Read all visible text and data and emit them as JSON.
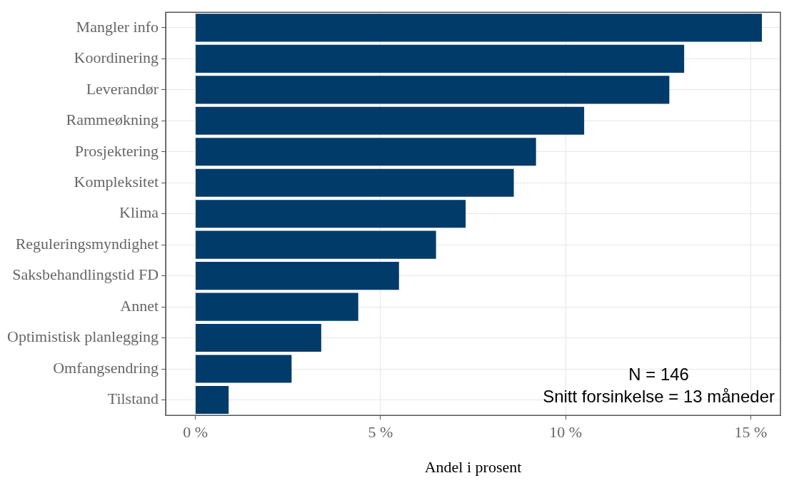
{
  "chart_data": {
    "type": "bar",
    "orientation": "horizontal",
    "xlabel": "Andel i prosent",
    "categories": [
      "Mangler info",
      "Koordinering",
      "Leverandør",
      "Rammeøkning",
      "Prosjektering",
      "Kompleksitet",
      "Klima",
      "Reguleringsmyndighet",
      "Saksbehandlingstid FD",
      "Annet",
      "Optimistisk planlegging",
      "Omfangsendring",
      "Tilstand"
    ],
    "values": [
      15.3,
      13.2,
      12.8,
      10.5,
      9.2,
      8.6,
      7.3,
      6.5,
      5.5,
      4.4,
      3.4,
      2.6,
      0.9
    ],
    "color": "#003b6a",
    "xlim": [
      -0.8,
      15.8
    ],
    "xticks": [
      {
        "value": 0,
        "label": "0 %"
      },
      {
        "value": 5,
        "label": "5 %"
      },
      {
        "value": 10,
        "label": "10 %"
      },
      {
        "value": 15,
        "label": "15 %"
      }
    ],
    "grid": true,
    "annotations": [
      "N = 146",
      "Snitt forsinkelse = 13 måneder"
    ]
  }
}
